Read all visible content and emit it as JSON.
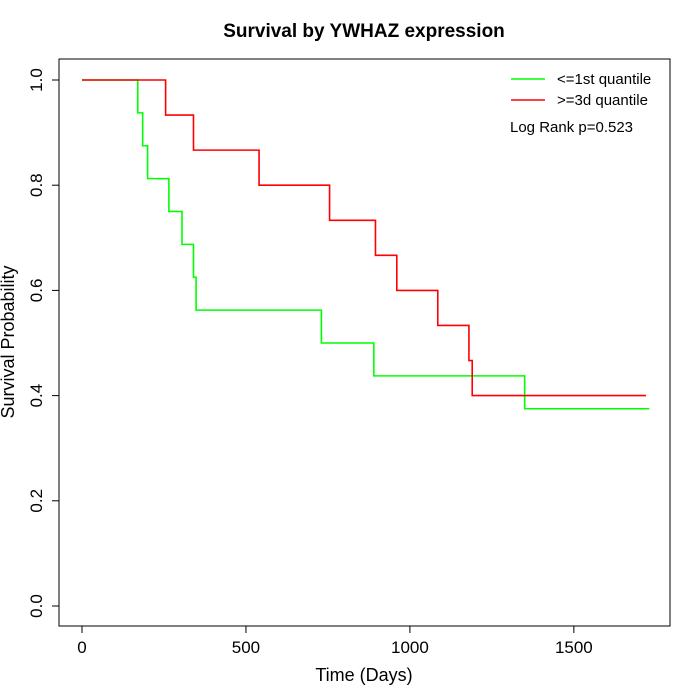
{
  "chart_data": {
    "type": "line",
    "title": "Survival by YWHAZ expression",
    "xlabel": "Time (Days)",
    "ylabel": "Survival Probability",
    "xlim": [
      0,
      1730
    ],
    "ylim": [
      0,
      1.0
    ],
    "xticks": [
      0,
      500,
      1000,
      1500
    ],
    "yticks": [
      0.0,
      0.2,
      0.4,
      0.6,
      0.8,
      1.0
    ],
    "xtick_labels": [
      "0",
      "500",
      "1000",
      "1500"
    ],
    "ytick_labels": [
      "0.0",
      "0.2",
      "0.4",
      "0.6",
      "0.8",
      "1.0"
    ],
    "grid": false,
    "legend_position": "top-right",
    "annotation": "Log Rank p=0.523",
    "series": [
      {
        "name": "<=1st quantile",
        "color": "#00ff00",
        "step": true,
        "x": [
          0,
          170,
          185,
          200,
          265,
          305,
          340,
          348,
          730,
          890,
          1350,
          1730
        ],
        "y": [
          1.0,
          0.9375,
          0.875,
          0.8125,
          0.75,
          0.6875,
          0.625,
          0.5625,
          0.5,
          0.4375,
          0.375,
          0.375
        ]
      },
      {
        "name": ">=3d quantile",
        "color": "#ff0000",
        "step": true,
        "x": [
          0,
          255,
          340,
          540,
          755,
          895,
          960,
          1085,
          1180,
          1190,
          1720
        ],
        "y": [
          1.0,
          0.9333,
          0.8667,
          0.8,
          0.7333,
          0.6667,
          0.6,
          0.5333,
          0.4667,
          0.4,
          0.4
        ]
      }
    ]
  }
}
